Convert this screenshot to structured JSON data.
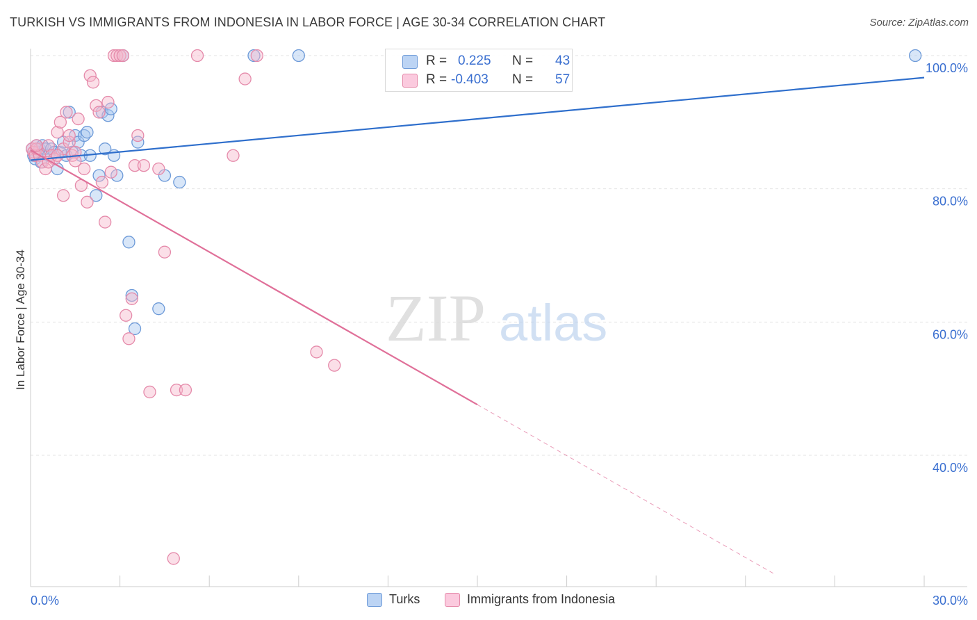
{
  "header": {
    "title": "TURKISH VS IMMIGRANTS FROM INDONESIA IN LABOR FORCE | AGE 30-34 CORRELATION CHART",
    "source": "Source: ZipAtlas.com"
  },
  "watermark": {
    "zip": "ZIP",
    "atlas": "atlas"
  },
  "stats_legend": {
    "rows": [
      {
        "r_label": "R =",
        "r_value": "0.225",
        "n_label": "N =",
        "n_value": "43"
      },
      {
        "r_label": "R =",
        "r_value": "-0.403",
        "n_label": "N =",
        "n_value": "57"
      }
    ]
  },
  "bottom_legend": {
    "items": [
      "Turks",
      "Immigrants from Indonesia"
    ]
  },
  "colors": {
    "turks_fill": "#a9c8f0",
    "turks_stroke": "#6d9ad8",
    "turks_line": "#2f6fcc",
    "indo_fill": "#f6b8cd",
    "indo_stroke": "#e58aaa",
    "indo_line": "#e07099",
    "axis_text": "#3a6fd0",
    "grid": "#e3e3e3"
  },
  "chart_data": {
    "type": "scatter",
    "title": "TURKISH VS IMMIGRANTS FROM INDONESIA IN LABOR FORCE | AGE 30-34 CORRELATION CHART",
    "xlabel": "",
    "ylabel": "In Labor Force | Age 30-34",
    "xlim": [
      0,
      30
    ],
    "ylim": [
      20,
      102
    ],
    "x_tick_labels": [
      {
        "value": 0,
        "label": "0.0%"
      },
      {
        "value": 30,
        "label": "30.0%"
      }
    ],
    "y_tick_labels": [
      {
        "value": 100,
        "label": "100.0%"
      },
      {
        "value": 80,
        "label": "80.0%"
      },
      {
        "value": 60,
        "label": "60.0%"
      },
      {
        "value": 40,
        "label": "40.0%"
      }
    ],
    "grid": true,
    "legend_position": "top-center",
    "series": [
      {
        "name": "Turks",
        "color": "#6d9ad8",
        "points": [
          [
            0.05,
            86
          ],
          [
            0.1,
            85
          ],
          [
            0.15,
            84.5
          ],
          [
            0.2,
            86.5
          ],
          [
            0.25,
            85.5
          ],
          [
            0.3,
            86
          ],
          [
            0.35,
            84
          ],
          [
            0.4,
            86.5
          ],
          [
            0.5,
            86
          ],
          [
            0.6,
            85
          ],
          [
            0.7,
            86
          ],
          [
            0.8,
            85.5
          ],
          [
            0.9,
            83
          ],
          [
            1.0,
            85.5
          ],
          [
            1.1,
            87
          ],
          [
            1.2,
            85
          ],
          [
            1.3,
            91.5
          ],
          [
            1.4,
            85.5
          ],
          [
            1.5,
            88
          ],
          [
            1.6,
            87
          ],
          [
            1.7,
            85
          ],
          [
            1.8,
            88
          ],
          [
            1.9,
            88.5
          ],
          [
            2.0,
            85
          ],
          [
            2.2,
            79
          ],
          [
            2.3,
            82
          ],
          [
            2.4,
            91.5
          ],
          [
            2.5,
            86
          ],
          [
            2.6,
            91
          ],
          [
            2.7,
            92
          ],
          [
            2.8,
            85
          ],
          [
            2.9,
            82
          ],
          [
            3.1,
            100
          ],
          [
            3.3,
            72
          ],
          [
            3.4,
            64
          ],
          [
            3.5,
            59
          ],
          [
            3.6,
            87
          ],
          [
            4.3,
            62
          ],
          [
            4.5,
            82
          ],
          [
            5.0,
            81
          ],
          [
            7.5,
            100
          ],
          [
            9.0,
            100
          ],
          [
            29.7,
            100
          ]
        ],
        "trend": {
          "x": [
            0,
            30
          ],
          "y": [
            84.3,
            96.7
          ],
          "style": "solid"
        }
      },
      {
        "name": "Immigrants from Indonesia",
        "color": "#e58aaa",
        "points": [
          [
            0.05,
            86
          ],
          [
            0.1,
            85.5
          ],
          [
            0.15,
            85
          ],
          [
            0.2,
            86
          ],
          [
            0.3,
            85
          ],
          [
            0.4,
            84
          ],
          [
            0.5,
            83
          ],
          [
            0.6,
            86.5
          ],
          [
            0.7,
            85
          ],
          [
            0.8,
            84.5
          ],
          [
            0.9,
            88.5
          ],
          [
            1.0,
            90
          ],
          [
            1.1,
            86
          ],
          [
            1.2,
            91.5
          ],
          [
            1.3,
            87
          ],
          [
            1.4,
            85
          ],
          [
            1.5,
            85.5
          ],
          [
            1.6,
            90.5
          ],
          [
            1.7,
            80.5
          ],
          [
            1.8,
            83
          ],
          [
            1.9,
            78
          ],
          [
            2.0,
            97
          ],
          [
            2.1,
            96
          ],
          [
            2.2,
            92.5
          ],
          [
            2.3,
            91.5
          ],
          [
            2.4,
            81
          ],
          [
            2.5,
            75
          ],
          [
            2.6,
            93
          ],
          [
            2.7,
            82.5
          ],
          [
            2.8,
            100
          ],
          [
            2.9,
            100
          ],
          [
            3.0,
            100
          ],
          [
            3.1,
            100
          ],
          [
            3.2,
            61
          ],
          [
            3.3,
            57.5
          ],
          [
            3.4,
            63.5
          ],
          [
            3.5,
            83.5
          ],
          [
            3.6,
            88
          ],
          [
            3.8,
            83.5
          ],
          [
            4.0,
            49.5
          ],
          [
            4.3,
            83
          ],
          [
            4.5,
            70.5
          ],
          [
            4.8,
            24.5
          ],
          [
            4.9,
            49.8
          ],
          [
            5.2,
            49.8
          ],
          [
            5.6,
            100
          ],
          [
            6.8,
            85
          ],
          [
            7.2,
            96.5
          ],
          [
            7.6,
            100
          ],
          [
            9.6,
            55.5
          ],
          [
            10.2,
            53.5
          ],
          [
            0.6,
            84
          ],
          [
            0.9,
            85
          ],
          [
            1.1,
            79
          ],
          [
            1.3,
            88
          ],
          [
            1.5,
            84.2
          ],
          [
            0.2,
            86.5
          ]
        ],
        "trend": {
          "x": [
            0,
            15
          ],
          "y": [
            85.8,
            47.6
          ],
          "style": "solid"
        },
        "trend_extension": {
          "x": [
            15,
            25
          ],
          "y": [
            47.6,
            22.1
          ],
          "style": "dashed"
        }
      }
    ]
  }
}
